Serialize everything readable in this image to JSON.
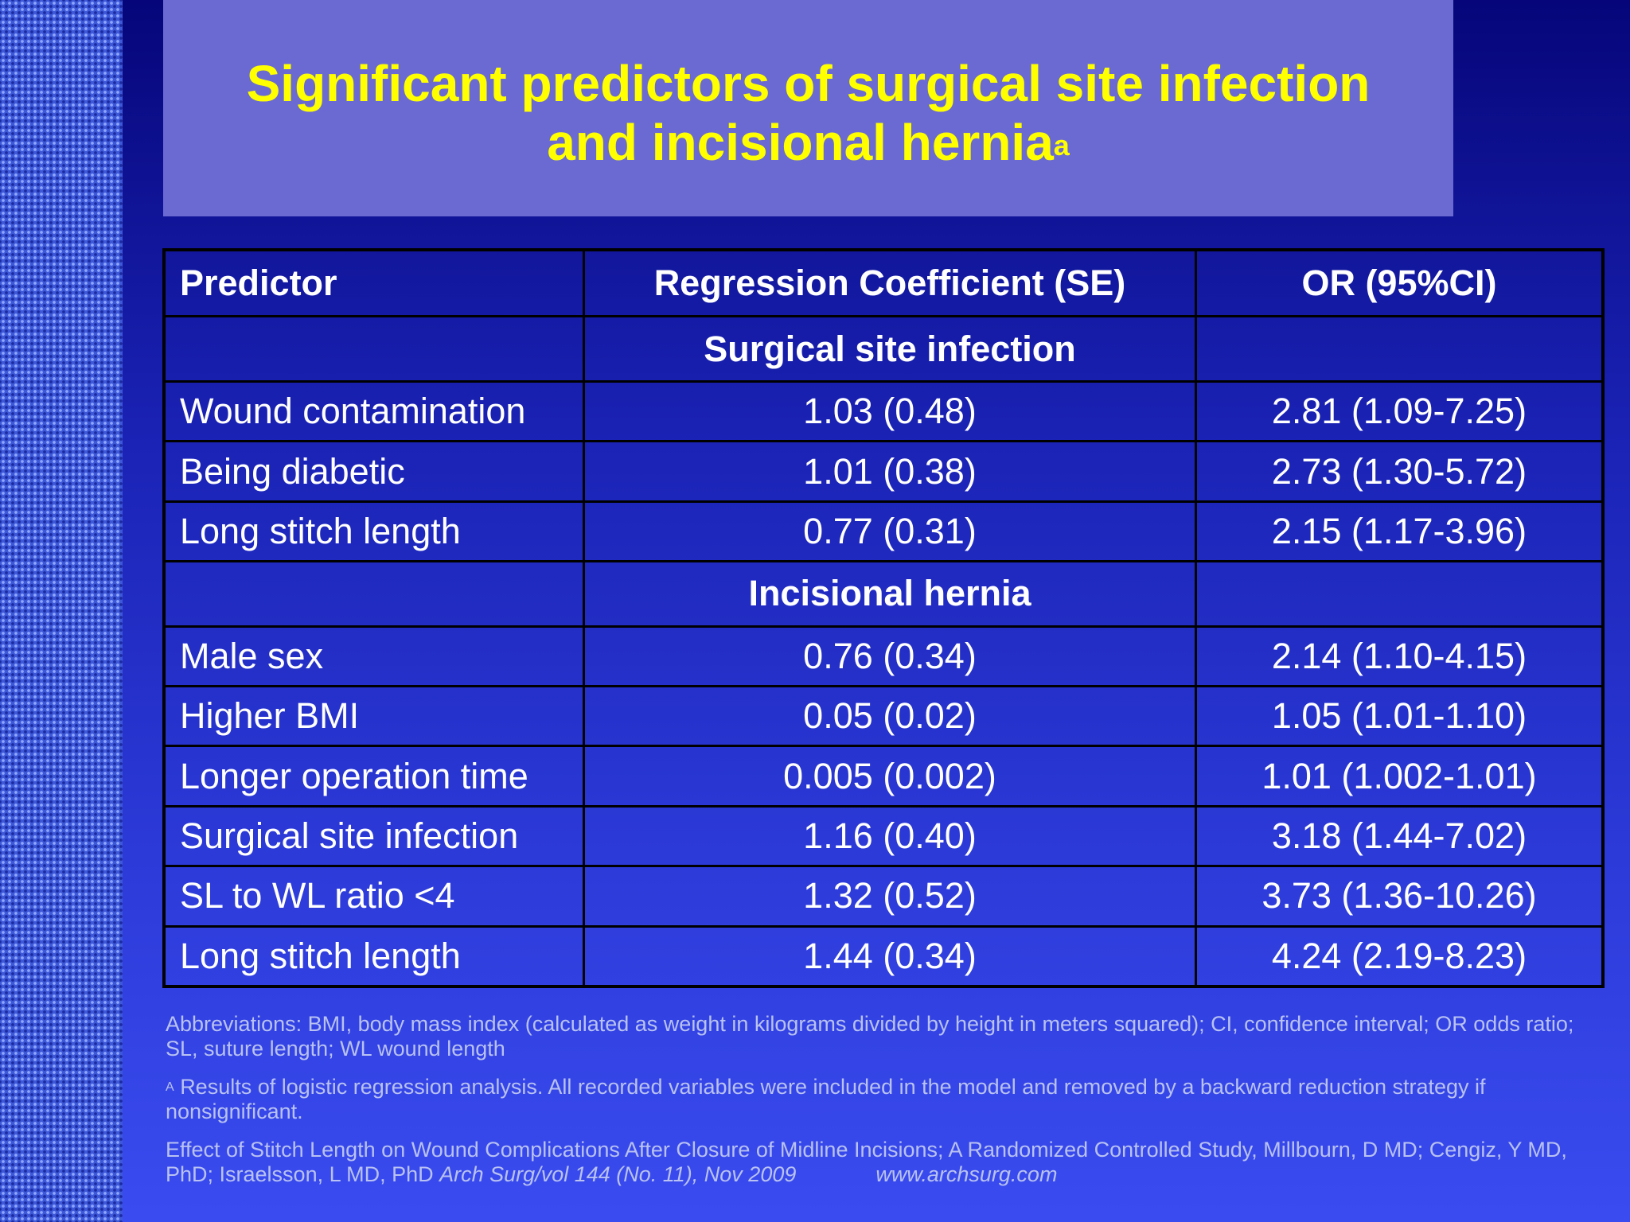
{
  "slide": {
    "title_line1": "Significant predictors of surgical site infection",
    "title_line2": "and incisional hernia",
    "title_sup": "a"
  },
  "table": {
    "headers": [
      "Predictor",
      "Regression Coefficient (SE)",
      "OR (95%CI)"
    ],
    "sections": [
      {
        "name": "Surgical site infection",
        "rows": [
          {
            "predictor": "Wound contamination",
            "coef": "1.03 (0.48)",
            "or": "2.81 (1.09-7.25)"
          },
          {
            "predictor": "Being diabetic",
            "coef": "1.01 (0.38)",
            "or": "2.73 (1.30-5.72)"
          },
          {
            "predictor": "Long stitch length",
            "coef": "0.77 (0.31)",
            "or": "2.15 (1.17-3.96)"
          }
        ]
      },
      {
        "name": "Incisional hernia",
        "rows": [
          {
            "predictor": "Male sex",
            "coef": "0.76 (0.34)",
            "or": "2.14 (1.10-4.15)"
          },
          {
            "predictor": "Higher BMI",
            "coef": "0.05 (0.02)",
            "or": "1.05 (1.01-1.10)"
          },
          {
            "predictor": "Longer operation time",
            "coef": "0.005 (0.002)",
            "or": "1.01 (1.002-1.01)"
          },
          {
            "predictor": "Surgical site infection",
            "coef": "1.16 (0.40)",
            "or": "3.18 (1.44-7.02)"
          },
          {
            "predictor": "SL to WL ratio <4",
            "coef": "1.32 (0.52)",
            "or": "3.73 (1.36-10.26)"
          },
          {
            "predictor": "Long stitch length",
            "coef": "1.44 (0.34)",
            "or": "4.24 (2.19-8.23)"
          }
        ]
      }
    ]
  },
  "footnotes": {
    "abbreviations": "Abbreviations: BMI, body mass index (calculated as weight in kilograms divided by height in meters squared); CI, confidence interval; OR odds ratio; SL, suture length; WL wound length",
    "note_marker": "A",
    "note_text": "Results of logistic regression analysis. All recorded variables were included in the model and removed by a backward reduction strategy if nonsignificant.",
    "citation_text": "Effect of Stitch Length on Wound Complications After Closure of Midline Incisions; A Randomized Controlled Study, Millbourn, D MD; Cengiz, Y MD, PhD; Israelsson, L MD, PhD",
    "citation_journal": "Arch Surg/vol 144 (No. 11), Nov 2009",
    "citation_url": "www.archsurg.com"
  },
  "colors": {
    "title_text": "#ffff00",
    "title_box": "#6a6ad2",
    "background_top": "#06067a",
    "background_bottom": "#3a4cf0",
    "footnote_text": "#b9c2f2"
  }
}
